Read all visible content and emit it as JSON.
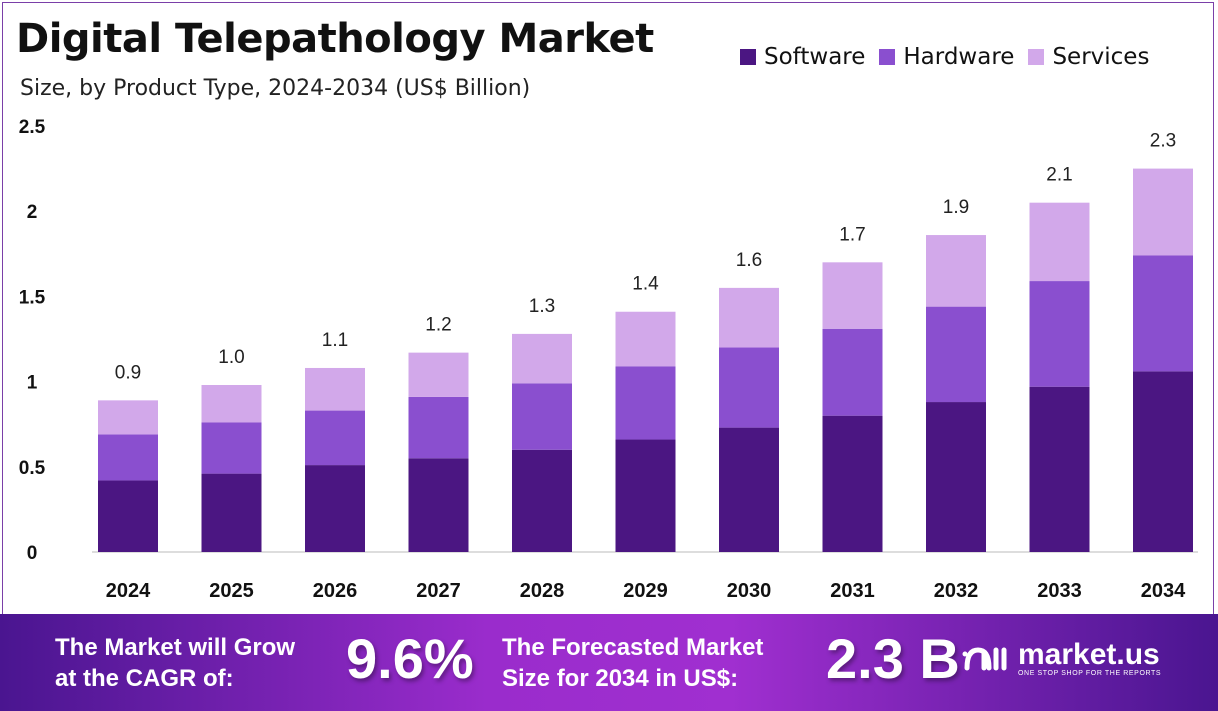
{
  "chart_data": {
    "type": "bar",
    "stacked": true,
    "title": "Digital Telepathology Market",
    "subtitle": "Size, by Product Type, 2024-2034 (US$ Billion)",
    "categories": [
      "2024",
      "2025",
      "2026",
      "2027",
      "2028",
      "2029",
      "2030",
      "2031",
      "2032",
      "2033",
      "2034"
    ],
    "series": [
      {
        "name": "Software",
        "color": "#4b1682",
        "values": [
          0.42,
          0.46,
          0.51,
          0.55,
          0.6,
          0.66,
          0.73,
          0.8,
          0.88,
          0.97,
          1.06
        ]
      },
      {
        "name": "Hardware",
        "color": "#8a4fcf",
        "values": [
          0.27,
          0.3,
          0.32,
          0.36,
          0.39,
          0.43,
          0.47,
          0.51,
          0.56,
          0.62,
          0.68
        ]
      },
      {
        "name": "Services",
        "color": "#d2a8ea",
        "values": [
          0.2,
          0.22,
          0.25,
          0.26,
          0.29,
          0.32,
          0.35,
          0.39,
          0.42,
          0.46,
          0.51
        ]
      }
    ],
    "total_labels": [
      "0.9",
      "1.0",
      "1.1",
      "1.2",
      "1.3",
      "1.4",
      "1.6",
      "1.7",
      "1.9",
      "2.1",
      "2.3"
    ],
    "y_ticks": [
      "0",
      "0.5",
      "1",
      "1.5",
      "2",
      "2.5"
    ],
    "ylim": [
      0,
      2.5
    ],
    "grid": false,
    "legend_position": "top-right"
  },
  "banner": {
    "cagr_text_line1": "The Market will Grow",
    "cagr_text_line2": "at the CAGR of:",
    "cagr_value": "9.6%",
    "forecast_text_line1": "The Forecasted Market",
    "forecast_text_line2": "Size for 2034 in US$:",
    "forecast_value": "2.3 B",
    "logo_name": "market.us",
    "logo_tagline": "ONE STOP SHOP FOR THE REPORTS"
  }
}
